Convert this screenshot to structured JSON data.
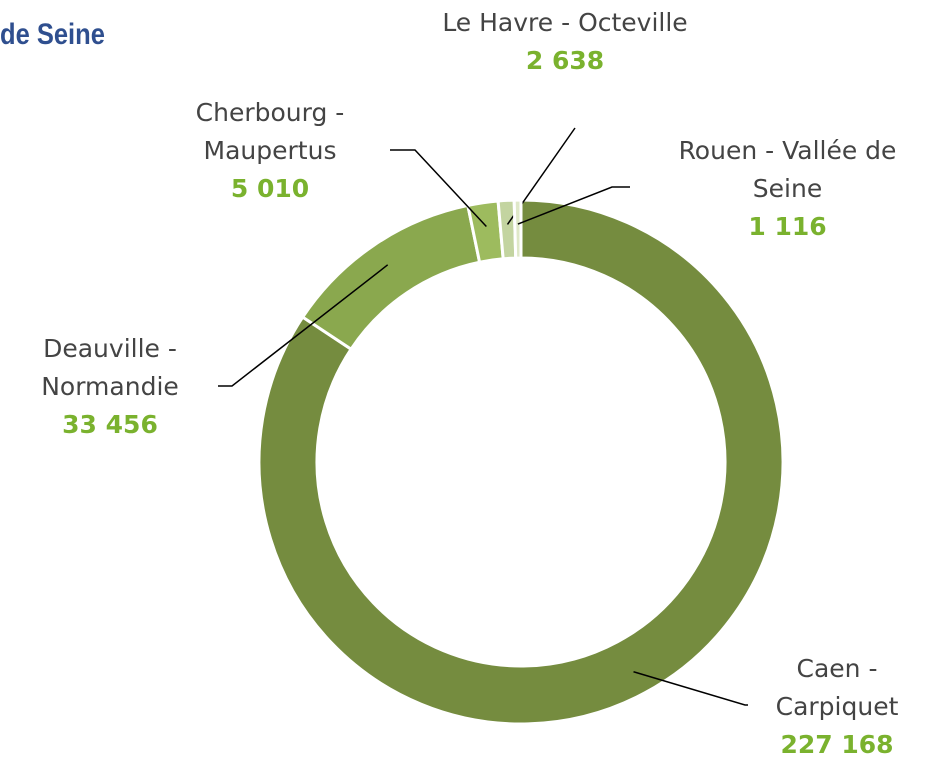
{
  "chart_data": {
    "type": "donut",
    "title": "de Seine",
    "categories": [
      "Caen - Carpiquet",
      "Deauville - Normandie",
      "Cherbourg - Maupertus",
      "Le Havre - Octeville",
      "Rouen - Vallée de Seine"
    ],
    "values": [
      227168,
      33456,
      5010,
      2638,
      1116
    ],
    "value_labels": [
      "227 168",
      "33 456",
      "5 010",
      "2 638",
      "1 116"
    ],
    "colors": [
      "#758c3f",
      "#8aa84e",
      "#9dbb5e",
      "#c3d4a0",
      "#dfe8c8"
    ]
  }
}
